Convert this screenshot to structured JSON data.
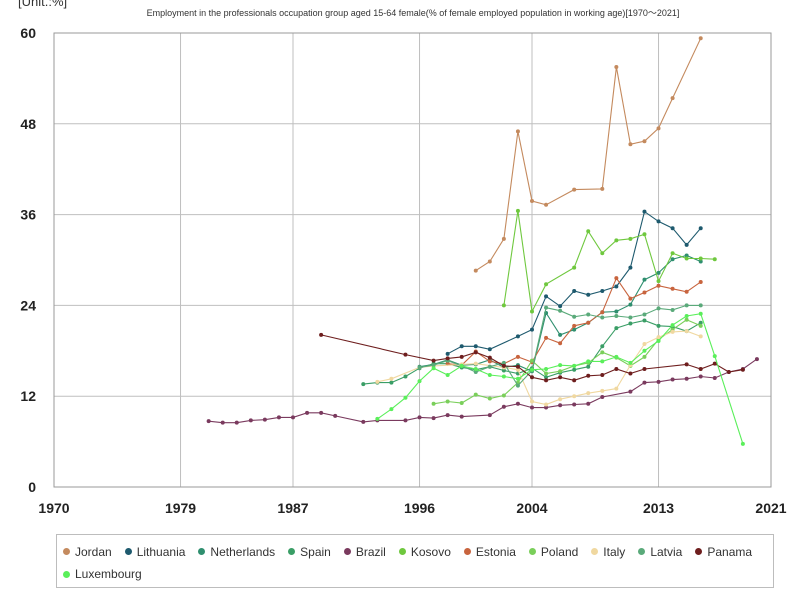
{
  "chart_data": {
    "type": "line",
    "title": "Employment in the professionals occupation group aged 15-64 female(% of female employed population in working age)[1970～2021]",
    "unit_label": "[Unit.:%]",
    "xlim": [
      1970,
      2021
    ],
    "ylim": [
      0,
      60
    ],
    "x_ticks": [
      "1970",
      "1979",
      "1987",
      "1996",
      "2004",
      "2013",
      "2021"
    ],
    "y_ticks": [
      "0",
      "12",
      "24",
      "36",
      "48",
      "60"
    ],
    "grid": true,
    "legend_position": "bottom",
    "series": [
      {
        "name": "Jordan",
        "color": "#c48a5e",
        "points": [
          [
            2000,
            28.6
          ],
          [
            2001,
            29.8
          ],
          [
            2002,
            32.8
          ],
          [
            2003,
            47.0
          ],
          [
            2004,
            37.8
          ],
          [
            2005,
            37.3
          ],
          [
            2007,
            39.3
          ],
          [
            2009,
            39.4
          ],
          [
            2010,
            55.5
          ],
          [
            2011,
            45.3
          ],
          [
            2012,
            45.7
          ],
          [
            2013,
            47.4
          ],
          [
            2014,
            51.4
          ],
          [
            2016,
            59.3
          ]
        ]
      },
      {
        "name": "Lithuania",
        "color": "#1e5a6e",
        "points": [
          [
            1998,
            17.6
          ],
          [
            1999,
            18.6
          ],
          [
            2000,
            18.6
          ],
          [
            2001,
            18.2
          ],
          [
            2003,
            19.9
          ],
          [
            2004,
            20.8
          ],
          [
            2005,
            25.2
          ],
          [
            2006,
            23.9
          ],
          [
            2007,
            25.9
          ],
          [
            2008,
            25.4
          ],
          [
            2009,
            25.9
          ],
          [
            2010,
            26.5
          ],
          [
            2011,
            29.0
          ],
          [
            2012,
            36.4
          ],
          [
            2013,
            35.1
          ],
          [
            2014,
            34.2
          ],
          [
            2015,
            32.0
          ],
          [
            2016,
            34.2
          ]
        ]
      },
      {
        "name": "Netherlands",
        "color": "#2f8f6f",
        "points": [
          [
            1996,
            15.9
          ],
          [
            1997,
            16.2
          ],
          [
            1998,
            16.8
          ],
          [
            1999,
            16.1
          ],
          [
            2000,
            16.2
          ],
          [
            2001,
            16.8
          ],
          [
            2002,
            15.8
          ],
          [
            2003,
            16.1
          ],
          [
            2004,
            15.3
          ],
          [
            2005,
            23.0
          ],
          [
            2006,
            20.1
          ],
          [
            2007,
            20.8
          ],
          [
            2008,
            21.7
          ],
          [
            2009,
            23.1
          ],
          [
            2010,
            23.2
          ],
          [
            2011,
            24.1
          ],
          [
            2012,
            27.4
          ],
          [
            2013,
            28.3
          ],
          [
            2014,
            30.1
          ],
          [
            2015,
            30.6
          ],
          [
            2016,
            29.8
          ]
        ]
      },
      {
        "name": "Spain",
        "color": "#3a9e66",
        "points": [
          [
            1992,
            13.6
          ],
          [
            1993,
            13.8
          ],
          [
            1994,
            13.8
          ],
          [
            1995,
            14.6
          ],
          [
            1996,
            15.7
          ],
          [
            1997,
            16.3
          ],
          [
            1998,
            16.3
          ],
          [
            1999,
            15.8
          ],
          [
            2000,
            15.5
          ],
          [
            2001,
            15.9
          ],
          [
            2002,
            15.4
          ],
          [
            2003,
            15.0
          ],
          [
            2004,
            15.7
          ],
          [
            2005,
            14.5
          ],
          [
            2006,
            15.1
          ],
          [
            2007,
            15.5
          ],
          [
            2008,
            15.9
          ],
          [
            2009,
            18.6
          ],
          [
            2010,
            21.0
          ],
          [
            2011,
            21.6
          ],
          [
            2012,
            22.0
          ],
          [
            2013,
            21.3
          ],
          [
            2014,
            21.2
          ],
          [
            2015,
            20.6
          ],
          [
            2016,
            21.7
          ]
        ]
      },
      {
        "name": "Brazil",
        "color": "#7a3a5e",
        "points": [
          [
            1981,
            8.7
          ],
          [
            1982,
            8.5
          ],
          [
            1983,
            8.5
          ],
          [
            1984,
            8.8
          ],
          [
            1985,
            8.9
          ],
          [
            1986,
            9.2
          ],
          [
            1987,
            9.2
          ],
          [
            1988,
            9.8
          ],
          [
            1989,
            9.8
          ],
          [
            1990,
            9.4
          ],
          [
            1992,
            8.6
          ],
          [
            1993,
            8.8
          ],
          [
            1995,
            8.8
          ],
          [
            1996,
            9.2
          ],
          [
            1997,
            9.1
          ],
          [
            1998,
            9.5
          ],
          [
            1999,
            9.3
          ],
          [
            2001,
            9.5
          ],
          [
            2002,
            10.6
          ],
          [
            2003,
            11.0
          ],
          [
            2004,
            10.5
          ],
          [
            2005,
            10.5
          ],
          [
            2006,
            10.8
          ],
          [
            2007,
            10.9
          ],
          [
            2008,
            11.0
          ],
          [
            2009,
            11.9
          ],
          [
            2011,
            12.6
          ],
          [
            2012,
            13.8
          ],
          [
            2013,
            13.9
          ],
          [
            2014,
            14.2
          ],
          [
            2015,
            14.3
          ],
          [
            2016,
            14.6
          ],
          [
            2017,
            14.4
          ],
          [
            2018,
            15.2
          ],
          [
            2019,
            15.6
          ],
          [
            2020,
            16.9
          ]
        ]
      },
      {
        "name": "Kosovo",
        "color": "#6fc83e",
        "points": [
          [
            2002,
            24.0
          ],
          [
            2003,
            36.5
          ],
          [
            2004,
            23.2
          ],
          [
            2005,
            26.8
          ],
          [
            2007,
            29.0
          ],
          [
            2008,
            33.8
          ],
          [
            2009,
            30.9
          ],
          [
            2010,
            32.6
          ],
          [
            2011,
            32.8
          ],
          [
            2012,
            33.4
          ],
          [
            2013,
            27.2
          ],
          [
            2014,
            30.9
          ],
          [
            2015,
            30.2
          ],
          [
            2016,
            30.2
          ],
          [
            2017,
            30.1
          ]
        ]
      },
      {
        "name": "Estonia",
        "color": "#c8643e",
        "points": [
          [
            1998,
            16.3
          ],
          [
            1999,
            16.1
          ],
          [
            2000,
            17.9
          ],
          [
            2001,
            16.6
          ],
          [
            2002,
            16.3
          ],
          [
            2003,
            17.2
          ],
          [
            2004,
            16.5
          ],
          [
            2005,
            19.7
          ],
          [
            2006,
            19.0
          ],
          [
            2007,
            21.3
          ],
          [
            2008,
            21.7
          ],
          [
            2009,
            23.1
          ],
          [
            2010,
            27.6
          ],
          [
            2011,
            24.9
          ],
          [
            2012,
            25.7
          ],
          [
            2013,
            26.6
          ],
          [
            2014,
            26.2
          ],
          [
            2015,
            25.8
          ],
          [
            2016,
            27.1
          ]
        ]
      },
      {
        "name": "Poland",
        "color": "#7acf5a",
        "points": [
          [
            1997,
            11.0
          ],
          [
            1998,
            11.3
          ],
          [
            1999,
            11.1
          ],
          [
            2000,
            12.2
          ],
          [
            2001,
            11.7
          ],
          [
            2002,
            12.1
          ],
          [
            2003,
            13.8
          ],
          [
            2004,
            16.7
          ],
          [
            2005,
            15.0
          ],
          [
            2006,
            15.3
          ],
          [
            2007,
            16.0
          ],
          [
            2008,
            16.4
          ],
          [
            2009,
            17.8
          ],
          [
            2010,
            17.1
          ],
          [
            2011,
            16.0
          ],
          [
            2012,
            17.2
          ],
          [
            2013,
            19.5
          ],
          [
            2014,
            20.8
          ],
          [
            2015,
            22.1
          ],
          [
            2016,
            21.3
          ]
        ]
      },
      {
        "name": "Italy",
        "color": "#f0d8a0",
        "points": [
          [
            1993,
            13.9
          ],
          [
            1994,
            14.3
          ],
          [
            1996,
            15.8
          ],
          [
            1997,
            16.0
          ],
          [
            1999,
            16.2
          ],
          [
            2000,
            16.3
          ],
          [
            2002,
            15.8
          ],
          [
            2003,
            15.5
          ],
          [
            2004,
            11.3
          ],
          [
            2005,
            10.9
          ],
          [
            2006,
            11.6
          ],
          [
            2007,
            12.0
          ],
          [
            2008,
            12.4
          ],
          [
            2009,
            12.7
          ],
          [
            2010,
            13.0
          ],
          [
            2011,
            16.1
          ],
          [
            2012,
            18.9
          ],
          [
            2013,
            19.8
          ],
          [
            2014,
            20.5
          ],
          [
            2015,
            20.6
          ],
          [
            2016,
            19.9
          ]
        ]
      },
      {
        "name": "Latvia",
        "color": "#5aaa7a",
        "points": [
          [
            1996,
            15.8
          ],
          [
            1997,
            16.1
          ],
          [
            1998,
            16.7
          ],
          [
            1999,
            16.0
          ],
          [
            2000,
            15.2
          ],
          [
            2001,
            15.9
          ],
          [
            2002,
            16.4
          ],
          [
            2003,
            13.4
          ],
          [
            2004,
            15.4
          ],
          [
            2005,
            23.7
          ],
          [
            2006,
            23.3
          ],
          [
            2007,
            22.5
          ],
          [
            2008,
            22.8
          ],
          [
            2009,
            22.4
          ],
          [
            2010,
            22.6
          ],
          [
            2011,
            22.4
          ],
          [
            2012,
            22.8
          ],
          [
            2013,
            23.6
          ],
          [
            2014,
            23.4
          ],
          [
            2015,
            24.0
          ],
          [
            2016,
            24.0
          ]
        ]
      },
      {
        "name": "Panama",
        "color": "#6e1e1e",
        "points": [
          [
            1989,
            20.1
          ],
          [
            1995,
            17.5
          ],
          [
            1997,
            16.7
          ],
          [
            1998,
            17.0
          ],
          [
            1999,
            17.2
          ],
          [
            2000,
            17.8
          ],
          [
            2001,
            17.1
          ],
          [
            2002,
            16.0
          ],
          [
            2003,
            15.9
          ],
          [
            2004,
            14.5
          ],
          [
            2005,
            14.1
          ],
          [
            2006,
            14.5
          ],
          [
            2007,
            14.1
          ],
          [
            2008,
            14.7
          ],
          [
            2009,
            14.8
          ],
          [
            2010,
            15.6
          ],
          [
            2011,
            15.0
          ],
          [
            2012,
            15.6
          ],
          [
            2015,
            16.2
          ],
          [
            2016,
            15.6
          ],
          [
            2017,
            16.3
          ],
          [
            2018,
            15.2
          ],
          [
            2019,
            15.5
          ]
        ]
      },
      {
        "name": "Luxembourg",
        "color": "#5aef5a",
        "points": [
          [
            1993,
            9.0
          ],
          [
            1994,
            10.3
          ],
          [
            1995,
            11.8
          ],
          [
            1996,
            14.0
          ],
          [
            1997,
            15.7
          ],
          [
            1998,
            14.8
          ],
          [
            1999,
            16.0
          ],
          [
            2000,
            15.6
          ],
          [
            2001,
            14.8
          ],
          [
            2002,
            14.6
          ],
          [
            2003,
            14.3
          ],
          [
            2004,
            15.5
          ],
          [
            2005,
            15.6
          ],
          [
            2006,
            16.1
          ],
          [
            2007,
            16.0
          ],
          [
            2008,
            16.6
          ],
          [
            2009,
            16.6
          ],
          [
            2010,
            17.2
          ],
          [
            2011,
            16.4
          ],
          [
            2012,
            18.0
          ],
          [
            2013,
            19.3
          ],
          [
            2014,
            21.4
          ],
          [
            2015,
            22.6
          ],
          [
            2016,
            22.9
          ],
          [
            2017,
            17.3
          ],
          [
            2019,
            5.7
          ]
        ]
      }
    ]
  }
}
